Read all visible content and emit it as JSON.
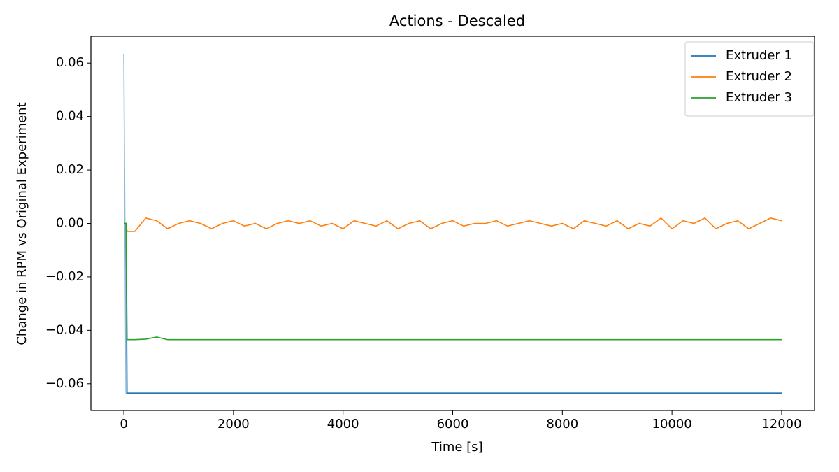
{
  "chart_data": {
    "type": "line",
    "title": "Actions - Descaled",
    "xlabel": "Time [s]",
    "ylabel": "Change in RPM vs Original Experiment",
    "x": [
      0,
      40,
      60,
      200,
      400,
      600,
      800,
      1000,
      1200,
      1400,
      1600,
      1800,
      2000,
      2200,
      2400,
      2600,
      2800,
      3000,
      3200,
      3400,
      3600,
      3800,
      4000,
      4200,
      4400,
      4600,
      4800,
      5000,
      5200,
      5400,
      5600,
      5800,
      6000,
      6200,
      6400,
      6600,
      6800,
      7000,
      7200,
      7400,
      7600,
      7800,
      8000,
      8200,
      8400,
      8600,
      8800,
      9000,
      9200,
      9400,
      9600,
      9800,
      10000,
      10200,
      10400,
      10600,
      10800,
      11000,
      11200,
      11400,
      11600,
      11800,
      12000
    ],
    "series": [
      {
        "name": "Extruder 1",
        "color": "#1f77b4",
        "values": [
          0,
          0,
          -0.0635,
          -0.0635,
          -0.0635,
          -0.0635,
          -0.0635,
          -0.0635,
          -0.0635,
          -0.0635,
          -0.0635,
          -0.0635,
          -0.0635,
          -0.0635,
          -0.0635,
          -0.0635,
          -0.0635,
          -0.0635,
          -0.0635,
          -0.0635,
          -0.0635,
          -0.0635,
          -0.0635,
          -0.0635,
          -0.0635,
          -0.0635,
          -0.0635,
          -0.0635,
          -0.0635,
          -0.0635,
          -0.0635,
          -0.0635,
          -0.0635,
          -0.0635,
          -0.0635,
          -0.0635,
          -0.0635,
          -0.0635,
          -0.0635,
          -0.0635,
          -0.0635,
          -0.0635,
          -0.0635,
          -0.0635,
          -0.0635,
          -0.0635,
          -0.0635,
          -0.0635,
          -0.0635,
          -0.0635,
          -0.0635,
          -0.0635,
          -0.0635,
          -0.0635,
          -0.0635,
          -0.0635,
          -0.0635,
          -0.0635,
          -0.0635,
          -0.0635,
          -0.0635,
          -0.0635,
          -0.0635
        ]
      },
      {
        "name": "Extruder 2",
        "color": "#ff7f0e",
        "values": [
          0,
          0,
          -0.003,
          -0.003,
          0.002,
          0.001,
          -0.002,
          0,
          0.001,
          0,
          -0.002,
          0,
          0.001,
          -0.001,
          0,
          -0.002,
          0,
          0.001,
          0,
          0.001,
          -0.001,
          0,
          -0.002,
          0.001,
          0,
          -0.001,
          0.001,
          -0.002,
          0,
          0.001,
          -0.002,
          0,
          0.001,
          -0.001,
          0,
          0,
          0.001,
          -0.001,
          0,
          0.001,
          0,
          -0.001,
          0,
          -0.002,
          0.001,
          0,
          -0.001,
          0.001,
          -0.002,
          0,
          -0.001,
          0.002,
          -0.002,
          0.001,
          0,
          0.002,
          -0.002,
          0,
          0.001,
          -0.002,
          0,
          0.002,
          0.001
        ]
      },
      {
        "name": "Extruder 3",
        "color": "#2ca02c",
        "values": [
          0,
          0,
          -0.0435,
          -0.0435,
          -0.0433,
          -0.0425,
          -0.0435,
          -0.0435,
          -0.0435,
          -0.0435,
          -0.0435,
          -0.0435,
          -0.0435,
          -0.0435,
          -0.0435,
          -0.0435,
          -0.0435,
          -0.0435,
          -0.0435,
          -0.0435,
          -0.0435,
          -0.0435,
          -0.0435,
          -0.0435,
          -0.0435,
          -0.0435,
          -0.0435,
          -0.0435,
          -0.0435,
          -0.0435,
          -0.0435,
          -0.0435,
          -0.0435,
          -0.0435,
          -0.0435,
          -0.0435,
          -0.0435,
          -0.0435,
          -0.0435,
          -0.0435,
          -0.0435,
          -0.0435,
          -0.0435,
          -0.0435,
          -0.0435,
          -0.0435,
          -0.0435,
          -0.0435,
          -0.0435,
          -0.0435,
          -0.0435,
          -0.0435,
          -0.0435,
          -0.0435,
          -0.0435,
          -0.0435,
          -0.0435,
          -0.0435,
          -0.0435,
          -0.0435,
          -0.0435,
          -0.0435,
          -0.0435
        ]
      }
    ],
    "raw_series": [
      {
        "color": "#1f77b4",
        "opacity": 0.5,
        "values": [
          0.0635,
          -0.0635,
          -0.0635,
          -0.0635,
          -0.0635,
          -0.0635,
          -0.0635,
          -0.0635,
          -0.0635,
          -0.0635,
          -0.0635,
          -0.0635,
          -0.0635,
          -0.0635,
          -0.0635,
          -0.0635,
          -0.0635,
          -0.0635,
          -0.0635,
          -0.0635,
          -0.0635,
          -0.0635,
          -0.0635,
          -0.0635,
          -0.0635,
          -0.0635,
          -0.0635,
          -0.0635,
          -0.0635,
          -0.0635,
          -0.0635,
          -0.0635,
          -0.0635,
          -0.0635,
          -0.0635,
          -0.0635,
          -0.0635,
          -0.0635,
          -0.0635,
          -0.0635,
          -0.0635,
          -0.0635,
          -0.0635,
          -0.0635,
          -0.0635,
          -0.0635,
          -0.0635,
          -0.0635,
          -0.0635,
          -0.0635,
          -0.0635,
          -0.0635,
          -0.0635,
          -0.0635,
          -0.0635,
          -0.0635,
          -0.0635,
          -0.0635,
          -0.0635,
          -0.0635,
          -0.0635,
          -0.0635,
          -0.0635
        ]
      }
    ],
    "xlim": [
      -600,
      12600
    ],
    "ylim": [
      -0.07,
      0.07
    ],
    "xticks": [
      0,
      2000,
      4000,
      6000,
      8000,
      10000,
      12000
    ],
    "yticks": [
      {
        "value": -0.06,
        "label": "−0.06"
      },
      {
        "value": -0.04,
        "label": "−0.04"
      },
      {
        "value": -0.02,
        "label": "−0.02"
      },
      {
        "value": 0,
        "label": "0.00"
      },
      0.02,
      0.04,
      0.06
    ],
    "legend": "upper right"
  }
}
